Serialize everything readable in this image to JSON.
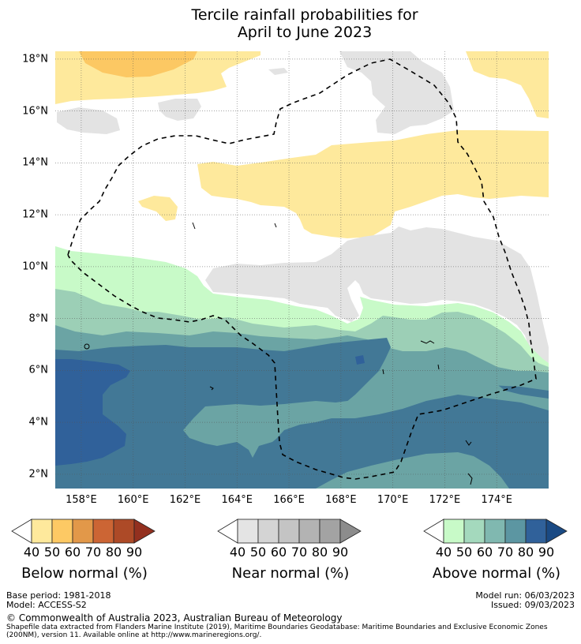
{
  "title": {
    "line1": "Tercile rainfall probabilities for",
    "line2": "April to June 2023"
  },
  "map": {
    "lon_range": [
      157.0,
      176.0
    ],
    "lat_range": [
      1.45,
      18.3
    ],
    "x_ticks": [
      "158°E",
      "160°E",
      "162°E",
      "164°E",
      "166°E",
      "168°E",
      "170°E",
      "172°E",
      "174°E"
    ],
    "x_tick_values": [
      158,
      160,
      162,
      164,
      166,
      168,
      170,
      172,
      174
    ],
    "y_ticks": [
      "18°N",
      "16°N",
      "14°N",
      "12°N",
      "10°N",
      "8°N",
      "6°N",
      "4°N",
      "2°N"
    ],
    "y_tick_values": [
      18,
      16,
      14,
      12,
      10,
      8,
      6,
      4,
      2
    ],
    "gridlines": true,
    "boundary": "Exclusive Economic Zone (dashed)",
    "colors": {
      "below_40_50": "#fee99c",
      "below_50_60": "#fcc863",
      "near_40_50": "#e3e3e3",
      "above_40_50": "#c8fac8",
      "above_50_60": "#9ccfb6",
      "above_60_70": "#6ba4a4",
      "above_70_80": "#427896",
      "above_80_90": "#30619a",
      "white": "#ffffff"
    }
  },
  "colorbars": [
    {
      "label": "Below normal (%)",
      "ticks": [
        "40",
        "50",
        "60",
        "70",
        "80",
        "90"
      ],
      "colors": [
        "#fee99c",
        "#fdc964",
        "#e29849",
        "#cc6534",
        "#ad4a27"
      ],
      "extend_color": "#93301f"
    },
    {
      "label": "Near normal (%)",
      "ticks": [
        "40",
        "50",
        "60",
        "70",
        "80",
        "90"
      ],
      "colors": [
        "#e4e4e4",
        "#d4d4d4",
        "#c4c4c4",
        "#b3b3b3",
        "#a3a3a3"
      ],
      "extend_color": "#8c8c8c"
    },
    {
      "label": "Above normal (%)",
      "ticks": [
        "40",
        "50",
        "60",
        "70",
        "80",
        "90"
      ],
      "colors": [
        "#c8fac8",
        "#a4d9bd",
        "#80b8b0",
        "#5c96a2",
        "#30619a"
      ],
      "extend_color": "#1a4a84"
    }
  ],
  "footer": {
    "base_period": "Base period: 1981-2018",
    "model": "Model: ACCESS-S2",
    "model_run": "Model run: 06/03/2023",
    "issued": "Issued: 09/03/2023",
    "copyright": "© Commonwealth of Australia 2023, Australian Bureau of Meteorology",
    "shapefile_note_1": "Shapefile data extracted from Flanders Marine Institute (2019), Maritime Boundaries Geodatabase: Maritime Boundaries and Exclusive Economic Zones",
    "shapefile_note_2": "(200NM), version 11. Available online at http://www.marineregions.org/."
  }
}
